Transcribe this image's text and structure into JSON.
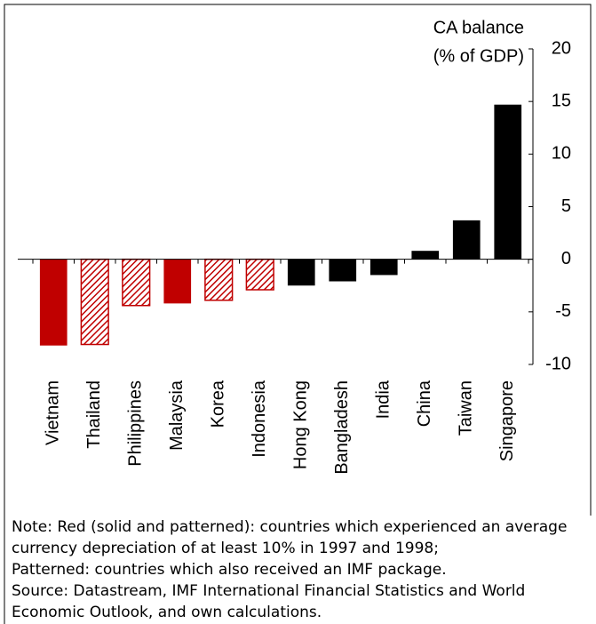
{
  "chart_data": {
    "type": "bar",
    "y_label": [
      "CA balance",
      "(% of GDP)"
    ],
    "categories": [
      "Vietnam",
      "Thailand",
      "Philippines",
      "Malaysia",
      "Korea",
      "Indonesia",
      "Hong Kong",
      "Bangladesh",
      "India",
      "China",
      "Taiwan",
      "Singapore"
    ],
    "values": [
      -8.2,
      -8.1,
      -4.4,
      -4.2,
      -3.9,
      -2.9,
      -2.5,
      -2.1,
      -1.5,
      0.8,
      3.7,
      14.7
    ],
    "colors": [
      "#c00000",
      "#c00000",
      "#c00000",
      "#c00000",
      "#c00000",
      "#c00000",
      "#000000",
      "#000000",
      "#000000",
      "#000000",
      "#000000",
      "#000000"
    ],
    "patterned": [
      false,
      true,
      true,
      false,
      true,
      true,
      false,
      false,
      false,
      false,
      false,
      false
    ],
    "ylim": [
      -10,
      20
    ],
    "yticks": [
      -10,
      -5,
      0,
      5,
      10,
      15,
      20
    ],
    "grid": false,
    "notes": [
      "Note: Red (solid and patterned): countries which experienced an average",
      "currency depreciation of at least 10% in 1997 and 1998;",
      "Patterned: countries which also received an IMF package.",
      "Source: Datastream, IMF International Financial Statistics and World",
      "Economic Outlook, and own calculations."
    ]
  }
}
